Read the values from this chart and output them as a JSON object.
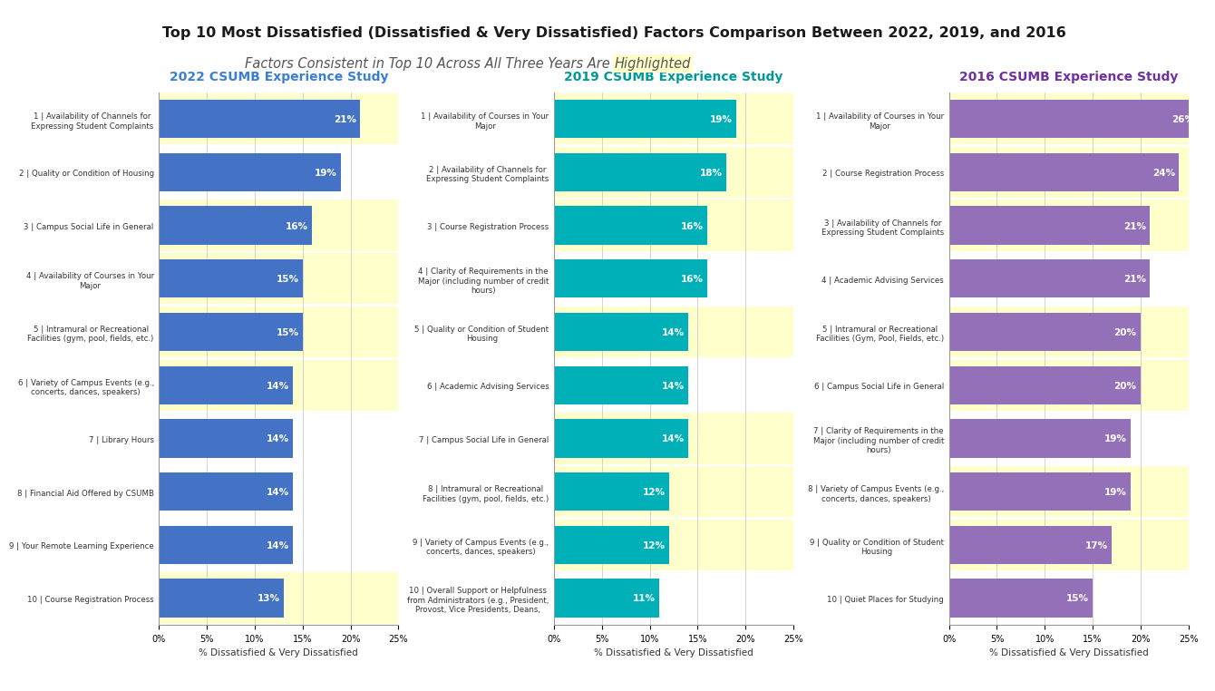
{
  "title": "Top 10 Most Dissatisfied (Dissatisfied & Very Dissatisfied) Factors Comparison Between 2022, 2019, and 2016",
  "subtitle_normal": "Factors Consistent in Top 10 Across All Three Years Are ",
  "subtitle_highlight": "Highlighted",
  "bg_color": "#FFFFFF",
  "highlight_color": "#FFFFCC",
  "xlabel": "% Dissatisfied & Very Dissatisfied",
  "chart2022": {
    "title": "2022 CSUMB Experience Study",
    "title_color": "#3B7FD4",
    "bar_color": "#4472C4",
    "labels": [
      "1 | Availability of Channels for\nExpressing Student Complaints",
      "2 | Quality or Condition of Housing",
      "3 | Campus Social Life in General",
      "4 | Availability of Courses in Your\nMajor",
      "5 | Intramural or Recreational\nFacilities (gym, pool, fields, etc.)",
      "6 | Variety of Campus Events (e.g.,\nconcerts, dances, speakers)",
      "7 | Library Hours",
      "8 | Financial Aid Offered by CSUMB",
      "9 | Your Remote Learning Experience",
      "10 | Course Registration Process"
    ],
    "values": [
      21,
      19,
      16,
      15,
      15,
      14,
      14,
      14,
      14,
      13
    ],
    "highlighted": [
      true,
      false,
      true,
      true,
      true,
      true,
      false,
      false,
      false,
      true
    ]
  },
  "chart2019": {
    "title": "2019 CSUMB Experience Study",
    "title_color": "#009999",
    "bar_color": "#00B0B9",
    "labels": [
      "1 | Availability of Courses in Your\nMajor",
      "2 | Availability of Channels for\nExpressing Student Complaints",
      "3 | Course Registration Process",
      "4 | Clarity of Requirements in the\nMajor (including number of credit\nhours)",
      "5 | Quality or Condition of Student\nHousing",
      "6 | Academic Advising Services",
      "7 | Campus Social Life in General",
      "8 | Intramural or Recreational\nFacilities (gym, pool, fields, etc.)",
      "9 | Variety of Campus Events (e.g.,\nconcerts, dances, speakers)",
      "10 | Overall Support or Helpfulness\nfrom Administrators (e.g., President,\nProvost, Vice Presidents, Deans,"
    ],
    "values": [
      19,
      18,
      16,
      16,
      14,
      14,
      14,
      12,
      12,
      11
    ],
    "highlighted": [
      true,
      true,
      true,
      false,
      true,
      false,
      true,
      true,
      true,
      false
    ]
  },
  "chart2016": {
    "title": "2016 CSUMB Experience Study",
    "title_color": "#7030A0",
    "bar_color": "#9370B8",
    "labels": [
      "1 | Availability of Courses in Your\nMajor",
      "2 | Course Registration Process",
      "3 | Availability of Channels for\nExpressing Student Complaints",
      "4 | Academic Advising Services",
      "5 | Intramural or Recreational\nFacilities (Gym, Pool, Fields, etc.)",
      "6 | Campus Social Life in General",
      "7 | Clarity of Requirements in the\nMajor (including number of credit\nhours)",
      "8 | Variety of Campus Events (e.g.,\nconcerts, dances, speakers)",
      "9 | Quality or Condition of Student\nHousing",
      "10 | Quiet Places for Studying"
    ],
    "values": [
      26,
      24,
      21,
      21,
      20,
      20,
      19,
      19,
      17,
      15
    ],
    "highlighted": [
      true,
      true,
      true,
      false,
      true,
      true,
      false,
      true,
      true,
      false
    ]
  }
}
